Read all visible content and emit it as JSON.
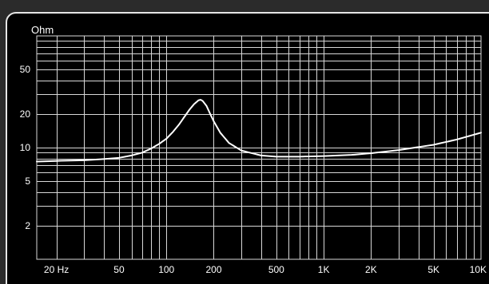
{
  "chart_data": {
    "type": "line",
    "title": "",
    "ylabel": "Ohm",
    "xlabel": "",
    "x_scale": "log",
    "y_scale": "log",
    "xlim": [
      15,
      10000
    ],
    "ylim": [
      1,
      100
    ],
    "grid": true,
    "x_ticks": [
      {
        "value": 20,
        "label": "20 Hz"
      },
      {
        "value": 50,
        "label": "50"
      },
      {
        "value": 100,
        "label": "100"
      },
      {
        "value": 200,
        "label": "200"
      },
      {
        "value": 500,
        "label": "500"
      },
      {
        "value": 1000,
        "label": "1K"
      },
      {
        "value": 2000,
        "label": "2K"
      },
      {
        "value": 5000,
        "label": "5K"
      },
      {
        "value": 10000,
        "label": "10K"
      }
    ],
    "y_ticks": [
      {
        "value": 2,
        "label": "2"
      },
      {
        "value": 5,
        "label": "5"
      },
      {
        "value": 10,
        "label": "10"
      },
      {
        "value": 20,
        "label": "20"
      },
      {
        "value": 50,
        "label": "50"
      }
    ],
    "series": [
      {
        "points": [
          [
            15,
            7.5
          ],
          [
            20,
            7.6
          ],
          [
            30,
            7.7
          ],
          [
            40,
            7.9
          ],
          [
            50,
            8.1
          ],
          [
            60,
            8.5
          ],
          [
            70,
            9.0
          ],
          [
            80,
            9.8
          ],
          [
            90,
            10.8
          ],
          [
            100,
            12.0
          ],
          [
            110,
            13.8
          ],
          [
            120,
            16.0
          ],
          [
            130,
            18.8
          ],
          [
            140,
            21.8
          ],
          [
            150,
            24.5
          ],
          [
            160,
            26.5
          ],
          [
            165,
            26.8
          ],
          [
            170,
            26.2
          ],
          [
            180,
            23.6
          ],
          [
            190,
            20.0
          ],
          [
            200,
            17.2
          ],
          [
            220,
            13.6
          ],
          [
            250,
            11.0
          ],
          [
            300,
            9.4
          ],
          [
            400,
            8.5
          ],
          [
            500,
            8.3
          ],
          [
            700,
            8.3
          ],
          [
            1000,
            8.4
          ],
          [
            1500,
            8.6
          ],
          [
            2000,
            8.9
          ],
          [
            3000,
            9.5
          ],
          [
            5000,
            10.6
          ],
          [
            7000,
            11.8
          ],
          [
            10000,
            13.6
          ]
        ]
      }
    ]
  },
  "colors": {
    "background": "#000000",
    "grid": "#d8d8d8",
    "curve": "#ffffff",
    "border": "#e6e6e6"
  }
}
